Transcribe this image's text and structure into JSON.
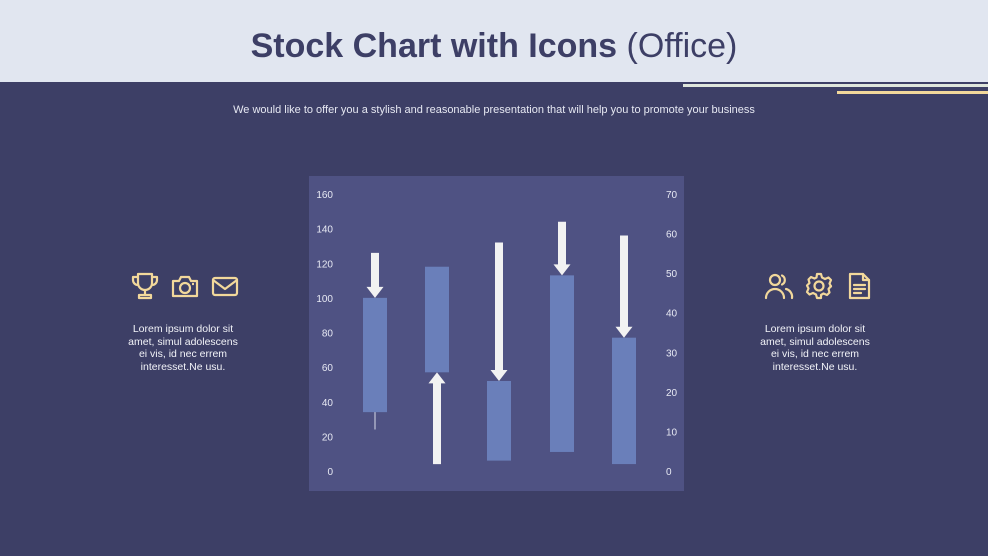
{
  "header": {
    "title_bold": "Stock Chart with Icons",
    "title_light": "(Office)"
  },
  "subtitle": "We would like to offer you a stylish and reasonable presentation that will help you to promote your business",
  "left_panel": {
    "icons": [
      "trophy-icon",
      "camera-icon",
      "mail-icon"
    ],
    "text": "Lorem ipsum dolor sit amet, simul adolescens ei vis, id nec errem interesset.Ne usu."
  },
  "right_panel": {
    "icons": [
      "users-icon",
      "gear-icon",
      "document-icon"
    ],
    "text": "Lorem ipsum dolor sit amet, simul adolescens ei vis, id nec errem interesset.Ne usu."
  },
  "colors": {
    "background": "#3d3f66",
    "header": "#e1e6f0",
    "accent": "#f2d89b",
    "chart_panel": "#4f5283",
    "candle": "#6a7fba",
    "arrow": "#f2f2f2"
  },
  "chart_data": {
    "type": "stock",
    "y_left": {
      "ylim": [
        0,
        160
      ],
      "ticks": [
        0,
        20,
        40,
        60,
        80,
        100,
        120,
        140,
        160
      ]
    },
    "y_right": {
      "ylim": [
        0,
        70
      ],
      "ticks": [
        0,
        10,
        20,
        30,
        40,
        50,
        60,
        70
      ]
    },
    "candles": [
      {
        "open": 100,
        "close": 34,
        "high": 100,
        "low": 24
      },
      {
        "open": 57,
        "close": 118,
        "high": 118,
        "low": 57
      },
      {
        "open": 52,
        "close": 6,
        "high": 52,
        "low": 6
      },
      {
        "open": 113,
        "close": 11,
        "high": 113,
        "low": 11
      },
      {
        "open": 77,
        "close": 4,
        "high": 77,
        "low": 4
      }
    ],
    "arrows": [
      {
        "direction": "down",
        "from": 126,
        "to": 100
      },
      {
        "direction": "up",
        "from": 4,
        "to": 57
      },
      {
        "direction": "down",
        "from": 132,
        "to": 52
      },
      {
        "direction": "down",
        "from": 144,
        "to": 113
      },
      {
        "direction": "down",
        "from": 136,
        "to": 77
      }
    ]
  }
}
